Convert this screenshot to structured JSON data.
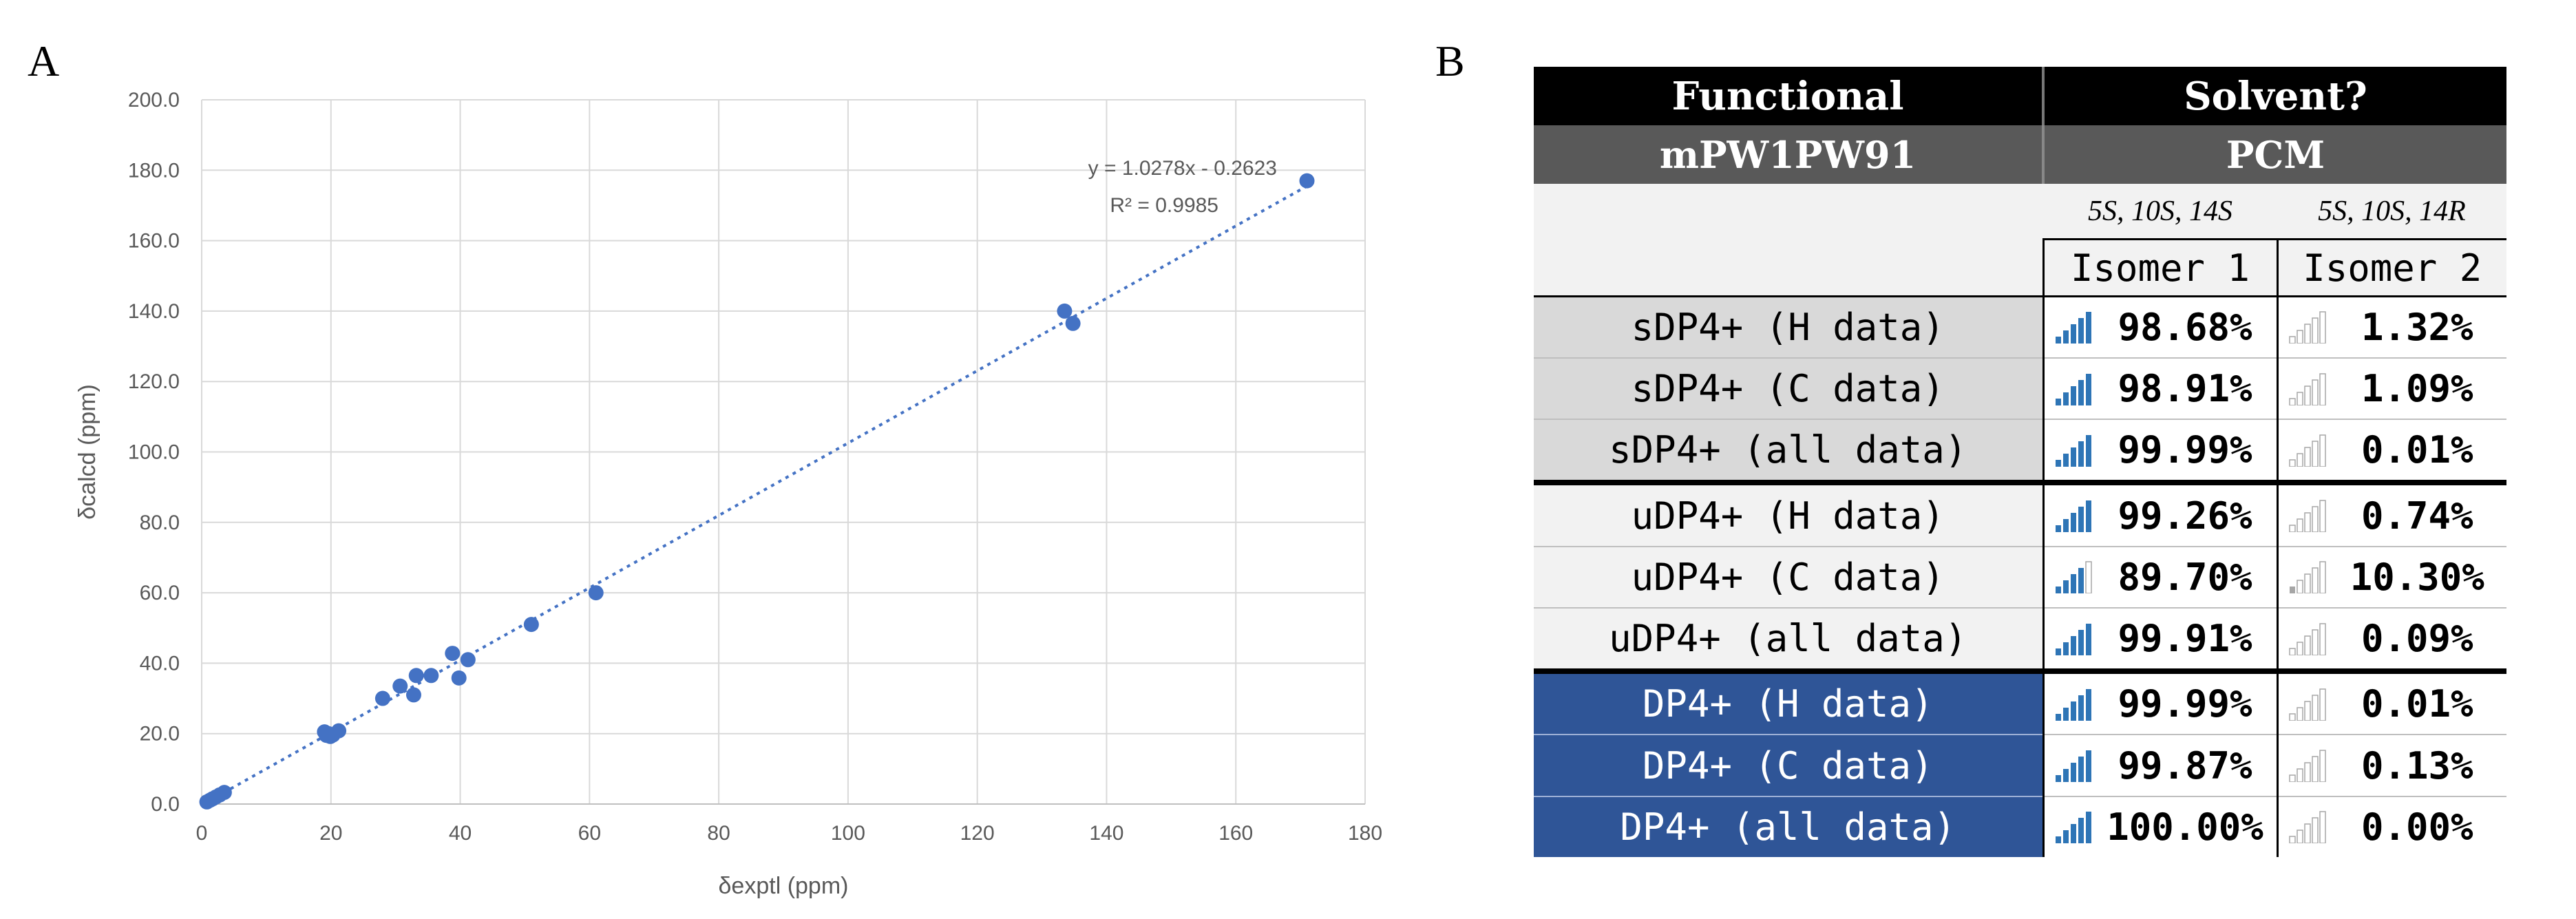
{
  "panel_a_label": "A",
  "panel_b_label": "B",
  "chart_data": {
    "type": "scatter",
    "xlabel": "δexptl (ppm)",
    "ylabel": "δcalcd (ppm)",
    "xlim": [
      0,
      180
    ],
    "ylim": [
      0,
      200
    ],
    "x_ticks": [
      "0",
      "20",
      "40",
      "60",
      "80",
      "100",
      "120",
      "140",
      "160",
      "180"
    ],
    "y_ticks": [
      "0.0",
      "20.0",
      "40.0",
      "60.0",
      "80.0",
      "100.0",
      "120.0",
      "140.0",
      "160.0",
      "180.0",
      "200.0"
    ],
    "grid": true,
    "color": "#4472c4",
    "trendline": {
      "slope": 1.0278,
      "intercept": -0.2623,
      "equation": "y = 1.0278x - 0.2623",
      "r2": "R² = 0.9985",
      "style": "dotted"
    },
    "points": [
      {
        "x": 0.8,
        "y": 0.6
      },
      {
        "x": 1.3,
        "y": 1.1
      },
      {
        "x": 1.7,
        "y": 1.5
      },
      {
        "x": 2.2,
        "y": 2.0
      },
      {
        "x": 2.8,
        "y": 2.6
      },
      {
        "x": 3.5,
        "y": 3.3
      },
      {
        "x": 19.0,
        "y": 20.5
      },
      {
        "x": 19.3,
        "y": 19.5
      },
      {
        "x": 19.6,
        "y": 20.0
      },
      {
        "x": 19.9,
        "y": 19.2
      },
      {
        "x": 20.3,
        "y": 19.6
      },
      {
        "x": 21.2,
        "y": 20.8
      },
      {
        "x": 28.0,
        "y": 30.0
      },
      {
        "x": 30.7,
        "y": 33.5
      },
      {
        "x": 32.8,
        "y": 31.0
      },
      {
        "x": 33.2,
        "y": 36.5
      },
      {
        "x": 35.5,
        "y": 36.5
      },
      {
        "x": 38.8,
        "y": 42.8
      },
      {
        "x": 39.8,
        "y": 35.8
      },
      {
        "x": 41.2,
        "y": 41.0
      },
      {
        "x": 51.0,
        "y": 51.0
      },
      {
        "x": 61.0,
        "y": 60.0
      },
      {
        "x": 133.5,
        "y": 140.0
      },
      {
        "x": 134.8,
        "y": 136.5
      },
      {
        "x": 171.0,
        "y": 177.0
      }
    ]
  },
  "table": {
    "header_functional": "Functional",
    "header_solvent": "Solvent?",
    "functional_value": "mPW1PW91",
    "solvent_value": "PCM",
    "config_1": "5S, 10S, 14S",
    "config_2": "5S, 10S, 14R",
    "isomer_1": "Isomer 1",
    "isomer_2": "Isomer 2",
    "rows": [
      {
        "label": "sDP4+ (H data)",
        "iso1": "98.68%",
        "iso2": "1.32%",
        "iso1_frac": 0.9868,
        "iso2_frac": 0.0132
      },
      {
        "label": "sDP4+ (C data)",
        "iso1": "98.91%",
        "iso2": "1.09%",
        "iso1_frac": 0.9891,
        "iso2_frac": 0.0109
      },
      {
        "label": "sDP4+ (all data)",
        "iso1": "99.99%",
        "iso2": "0.01%",
        "iso1_frac": 0.9999,
        "iso2_frac": 0.0001
      },
      {
        "label": "uDP4+ (H data)",
        "iso1": "99.26%",
        "iso2": "0.74%",
        "iso1_frac": 0.9926,
        "iso2_frac": 0.0074
      },
      {
        "label": "uDP4+ (C data)",
        "iso1": "89.70%",
        "iso2": "10.30%",
        "iso1_frac": 0.897,
        "iso2_frac": 0.103
      },
      {
        "label": "uDP4+ (all data)",
        "iso1": "99.91%",
        "iso2": "0.09%",
        "iso1_frac": 0.9991,
        "iso2_frac": 0.0009
      },
      {
        "label": "DP4+ (H data)",
        "iso1": "99.99%",
        "iso2": "0.01%",
        "iso1_frac": 0.9999,
        "iso2_frac": 0.0001
      },
      {
        "label": "DP4+ (C data)",
        "iso1": "99.87%",
        "iso2": "0.13%",
        "iso1_frac": 0.9987,
        "iso2_frac": 0.0013
      },
      {
        "label": "DP4+ (all data)",
        "iso1": "100.00%",
        "iso2": "0.00%",
        "iso1_frac": 1.0,
        "iso2_frac": 0.0
      }
    ],
    "colors": {
      "header_black": "#000000",
      "header_gray": "#595959",
      "s_rows": "#d9d9d9",
      "u_rows": "#f2f2f2",
      "dp4_rows": "#2f5597",
      "bar_blue": "#2e75b6",
      "bar_gray": "#a6a6a6"
    }
  }
}
